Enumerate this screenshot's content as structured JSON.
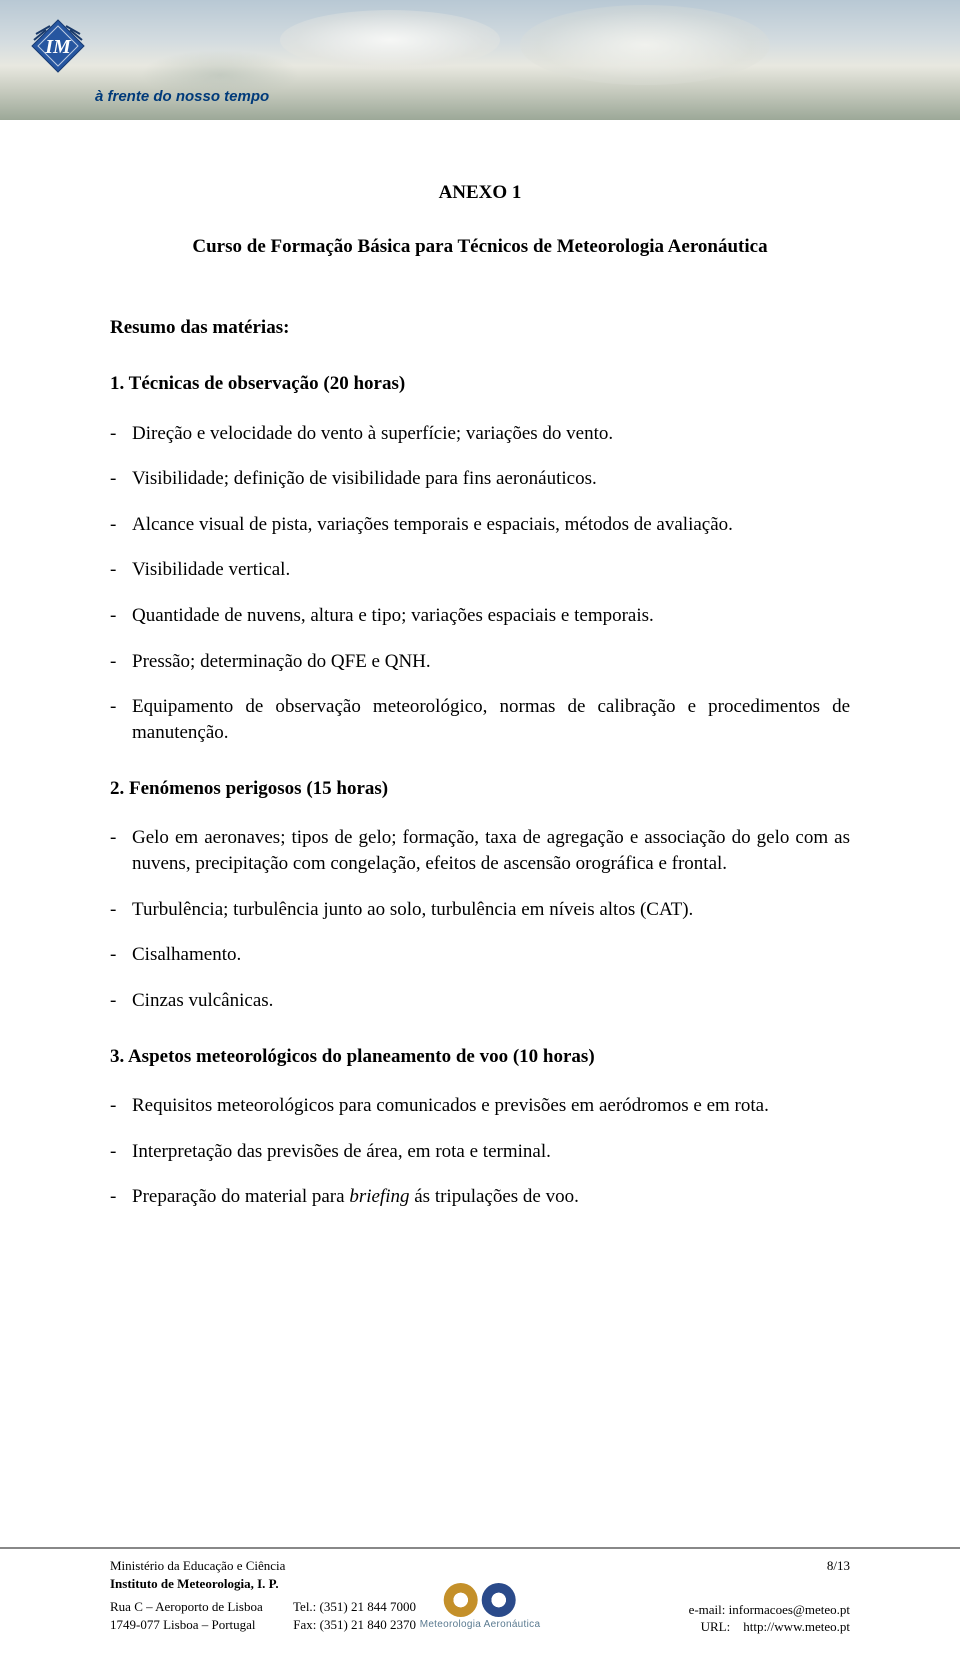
{
  "banner": {
    "tagline": "à frente do nosso tempo",
    "logo_text": "IM",
    "logo_fill": "#2656a0",
    "logo_stroke": "#163a72"
  },
  "doc": {
    "anexo": "ANEXO 1",
    "course": "Curso de Formação Básica para Técnicos de Meteorologia Aeronáutica",
    "subhead": "Resumo das matérias:",
    "sections": [
      {
        "num": "1.",
        "title": "Técnicas de observação (20 horas)",
        "items": [
          "Direção e velocidade do vento à superfície; variações do vento.",
          "Visibilidade; definição de visibilidade para fins aeronáuticos.",
          "Alcance visual de pista, variações temporais e espaciais, métodos de avaliação.",
          "Visibilidade vertical.",
          "Quantidade de nuvens, altura e tipo; variações espaciais e temporais.",
          "Pressão; determinação do QFE e QNH.",
          "Equipamento de observação meteorológico, normas de calibração e procedimentos de manutenção."
        ]
      },
      {
        "num": "2.",
        "title": "Fenómenos perigosos (15 horas)",
        "items": [
          "Gelo em aeronaves; tipos de gelo; formação, taxa de agregação e associação do gelo com as nuvens, precipitação com congelação, efeitos de ascensão orográfica e frontal.",
          "Turbulência; turbulência junto ao solo, turbulência em níveis altos (CAT).",
          "Cisalhamento.",
          "Cinzas vulcânicas."
        ]
      },
      {
        "num": "3.",
        "title": "Aspetos meteorológicos do planeamento de voo (10 horas)",
        "items": [
          "Requisitos meteorológicos para comunicados e previsões em aeródromos e em rota.",
          "Interpretação das previsões de área, em rota e terminal.",
          "Preparação do material para briefing ás tripulações de voo."
        ],
        "italic_word_index": 2,
        "italic_word": "briefing"
      }
    ]
  },
  "footer": {
    "ministry": "Ministério da Educação e Ciência",
    "institute": "Instituto de Meteorologia, I. P.",
    "addr1": "Rua C – Aeroporto de Lisboa",
    "addr2": "1749-077 Lisboa – Portugal",
    "tel": "Tel.: (351) 21 844 7000",
    "fax": "Fax: (351) 21 840 2370",
    "page": "8/13",
    "email": "e-mail: informacoes@meteo.pt",
    "url": "URL:    http://www.meteo.pt",
    "meteo_label": "Meteorologia Aeronáutica",
    "badge1_color_outer": "#c4902a",
    "badge1_color_inner": "#ffffff",
    "badge2_color_outer": "#2a4a8a",
    "badge2_color_inner": "#ffffff"
  },
  "colors": {
    "text": "#000000",
    "rule": "#888888"
  }
}
